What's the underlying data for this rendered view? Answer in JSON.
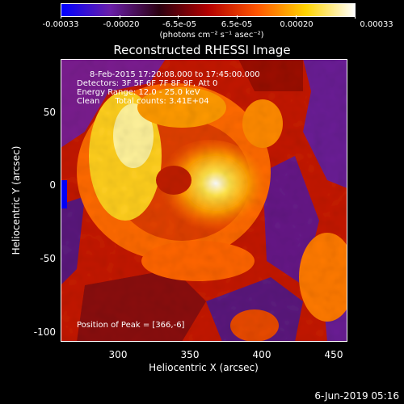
{
  "colorbar": {
    "tick_labels": [
      "-0.00033",
      "-0.00020",
      "-6.5e-05",
      "6.5e-05",
      "0.00020",
      "0.00033"
    ],
    "units": "(photons cm⁻² s⁻¹ asec⁻²)",
    "range": [
      -0.00033,
      0.00033
    ],
    "colors": [
      "#0000ff",
      "#6a1fa8",
      "#2a0010",
      "#b30000",
      "#ff5500",
      "#ffd400",
      "#ffffff"
    ]
  },
  "title": "Reconstructed RHESSI Image",
  "annotations": {
    "time_range": "8-Feb-2015 17:20:08.000 to 17:45:00.000",
    "detectors": "Detectors: 3F 5F 6F 7F 8F 9F, Att 0",
    "energy": "Energy Range: 12.0 - 25.0 keV",
    "clean": "Clean      Total counts: 3.41E+04",
    "peak": "Position of Peak = [366,-6]"
  },
  "axes": {
    "xlabel": "Heliocentric X (arcsec)",
    "ylabel": "Heliocentric Y (arcsec)",
    "x_ticks": [
      "300",
      "350",
      "400",
      "450"
    ],
    "y_ticks": [
      "50",
      "0",
      "-50",
      "-100"
    ],
    "xlim": [
      264,
      464
    ],
    "ylim": [
      -106,
      82
    ]
  },
  "footer": {
    "date": "6-Jun-2019 05:16"
  }
}
